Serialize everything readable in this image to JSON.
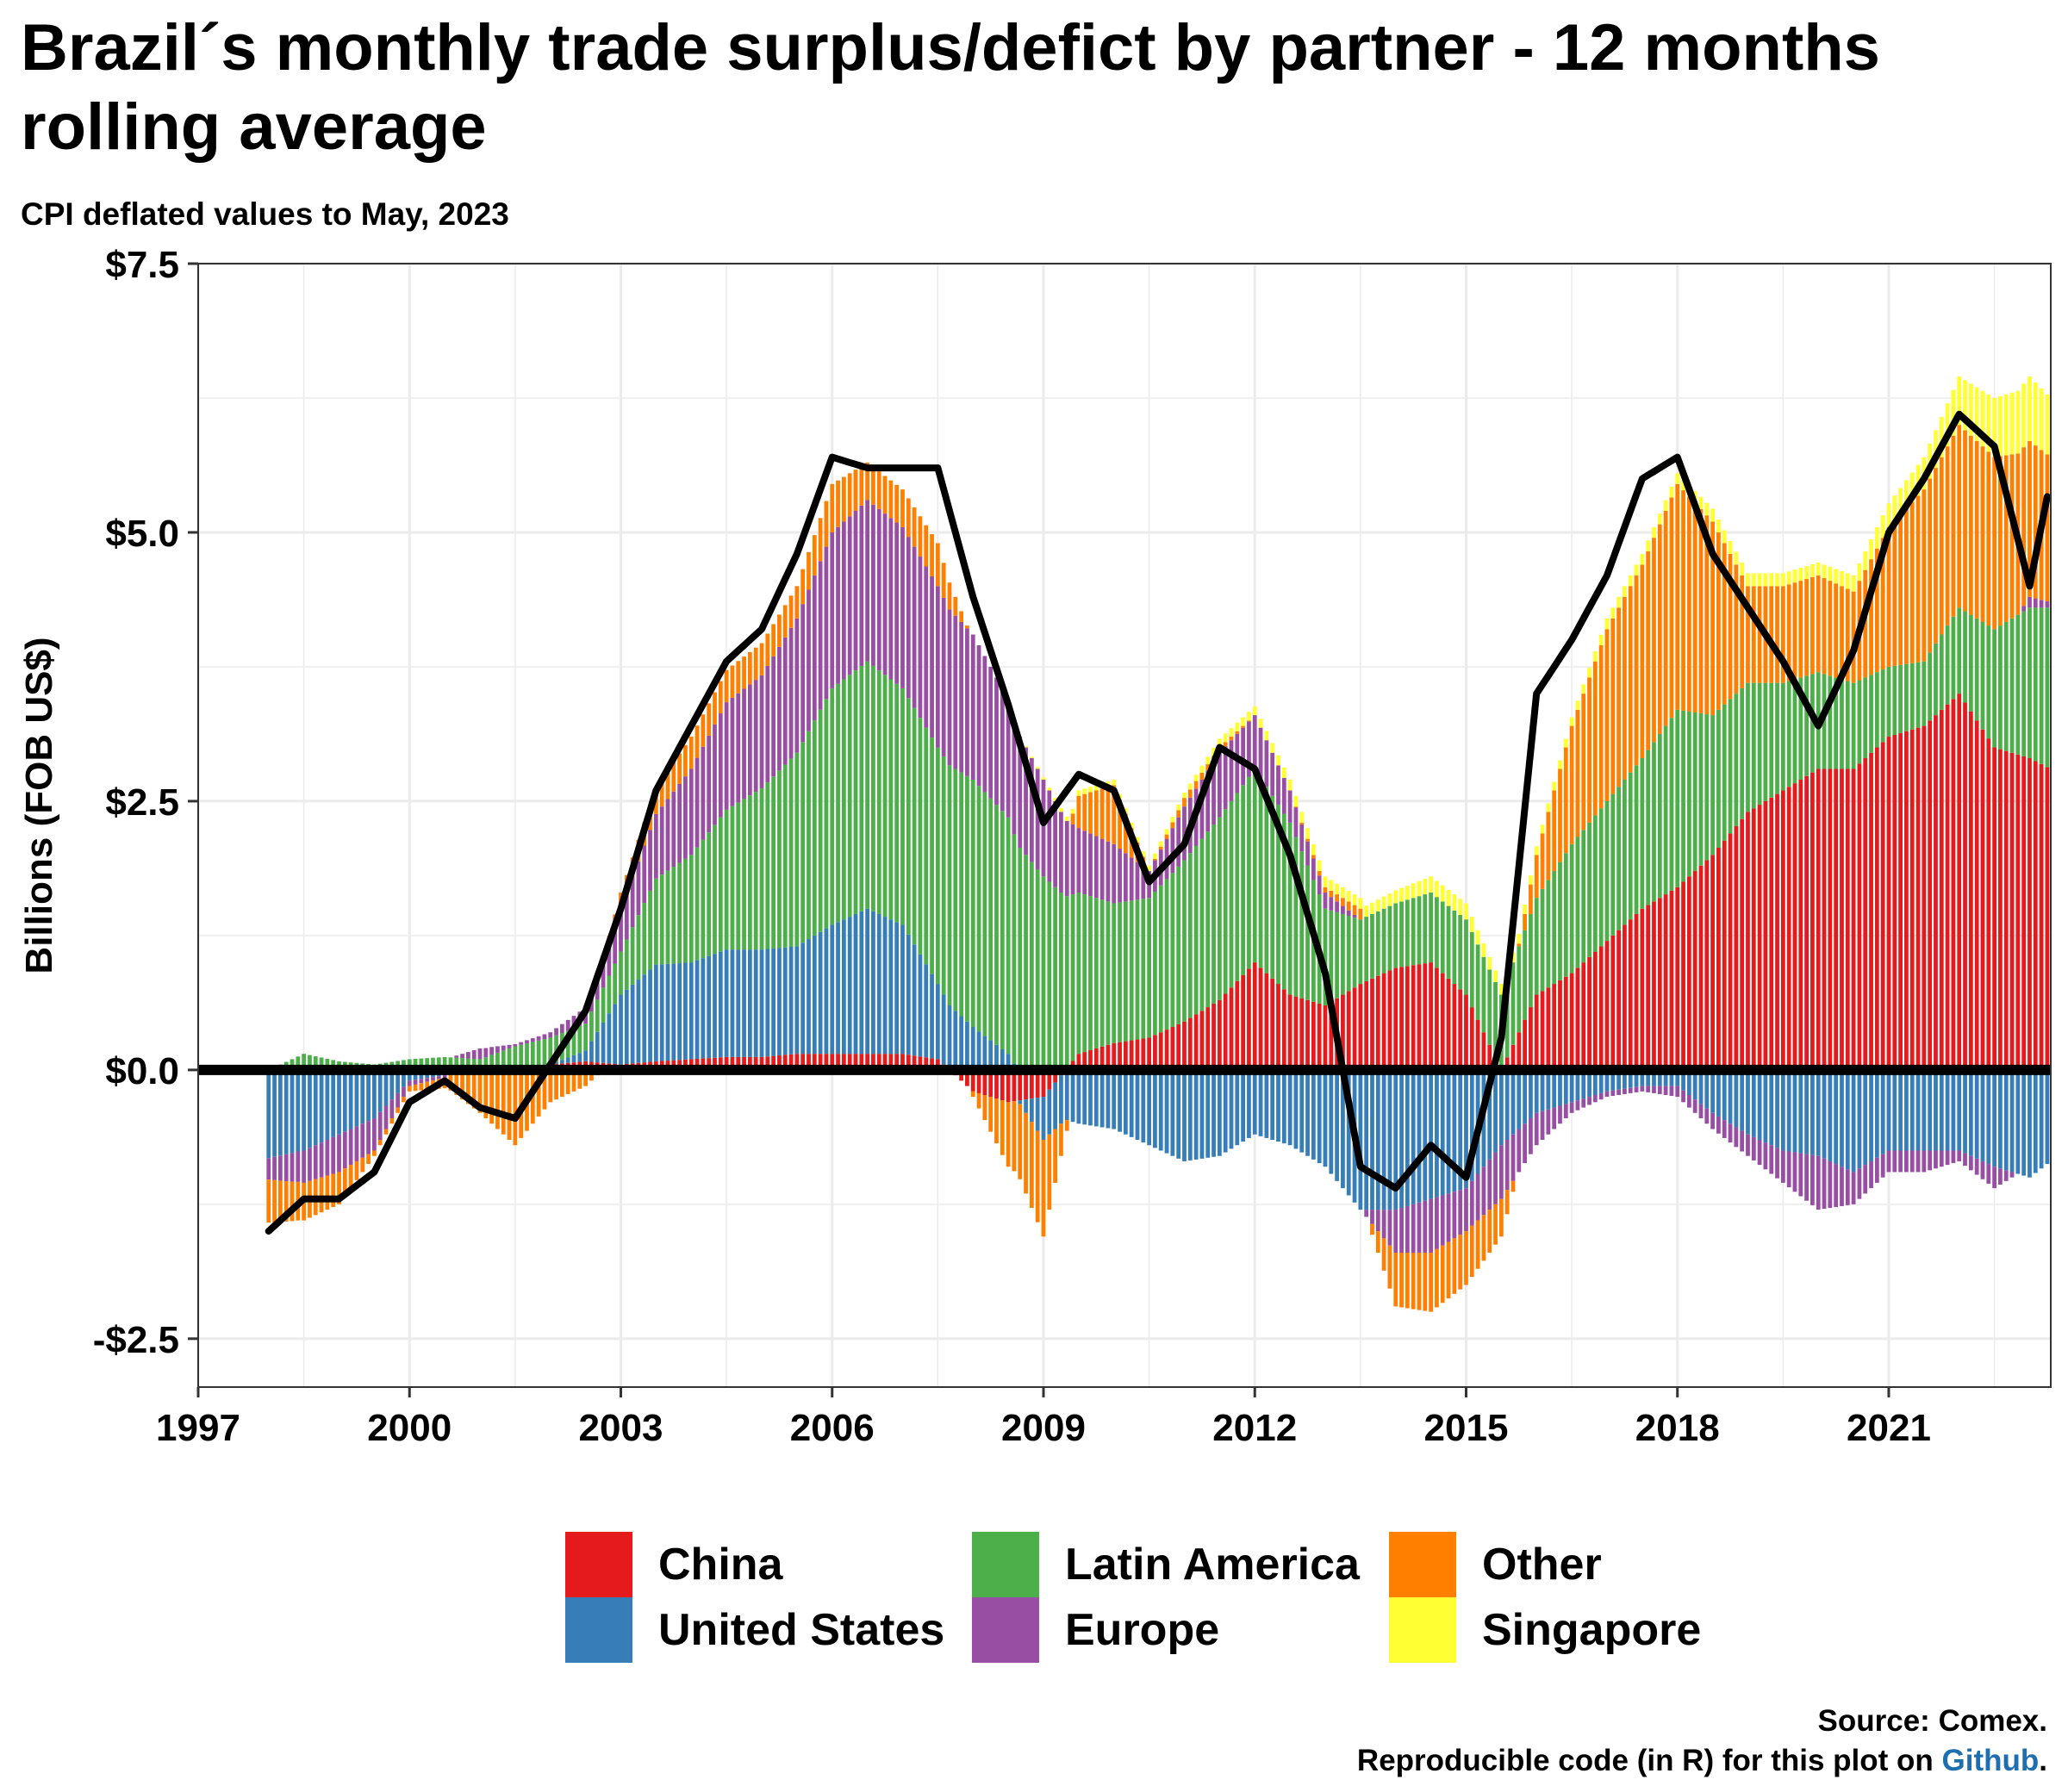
{
  "chart_data": {
    "type": "bar",
    "title": "Brazil´s monthly trade surplus/defict by partner - 12 months rolling average",
    "subtitle": "CPI deflated values to May, 2023",
    "ylabel": "Billions (FOB US$)",
    "xlabel": "",
    "x_ticks": [
      "1997",
      "2000",
      "2003",
      "2006",
      "2009",
      "2012",
      "2015",
      "2018",
      "2021"
    ],
    "y_ticks": [
      {
        "value": 7.5,
        "label": "$7.5"
      },
      {
        "value": 5.0,
        "label": "$5.0"
      },
      {
        "value": 2.5,
        "label": "$2.5"
      },
      {
        "value": 0.0,
        "label": "$0.0"
      },
      {
        "value": -2.5,
        "label": "-$2.5"
      }
    ],
    "xlim": [
      1997,
      2023.3
    ],
    "ylim": [
      -2.95,
      7.5
    ],
    "grid": true,
    "legend_position": "bottom",
    "stacked": true,
    "x": [
      1998.0,
      1998.5,
      1999.0,
      1999.5,
      2000.0,
      2000.5,
      2001.0,
      2001.5,
      2002.0,
      2002.5,
      2003.0,
      2003.5,
      2004.0,
      2004.5,
      2005.0,
      2005.5,
      2006.0,
      2006.5,
      2007.0,
      2007.5,
      2008.0,
      2008.5,
      2009.0,
      2009.5,
      2010.0,
      2010.5,
      2011.0,
      2011.5,
      2012.0,
      2012.5,
      2013.0,
      2013.5,
      2014.0,
      2014.5,
      2015.0,
      2015.5,
      2016.0,
      2016.5,
      2017.0,
      2017.5,
      2018.0,
      2018.5,
      2019.0,
      2019.5,
      2020.0,
      2020.5,
      2021.0,
      2021.5,
      2022.0,
      2022.5,
      2023.0,
      2023.3
    ],
    "series": [
      {
        "name": "China",
        "color": "#e41a1c",
        "values": [
          -0.02,
          0.0,
          0.0,
          0.0,
          0.0,
          0.0,
          0.0,
          0.02,
          0.05,
          0.08,
          0.05,
          0.08,
          0.1,
          0.12,
          0.12,
          0.15,
          0.15,
          0.15,
          0.15,
          0.1,
          -0.2,
          -0.3,
          -0.25,
          0.15,
          0.25,
          0.3,
          0.45,
          0.65,
          1.0,
          0.7,
          0.6,
          0.8,
          0.95,
          1.0,
          0.7,
          0.0,
          0.7,
          0.9,
          1.2,
          1.5,
          1.7,
          2.0,
          2.4,
          2.6,
          2.8,
          2.8,
          3.1,
          3.2,
          3.5,
          3.0,
          2.9,
          2.8
        ]
      },
      {
        "name": "United States",
        "color": "#377eb8",
        "values": [
          -0.8,
          -0.75,
          -0.6,
          -0.45,
          -0.1,
          -0.05,
          0.0,
          0.0,
          0.0,
          0.1,
          0.65,
          0.9,
          0.9,
          1.0,
          1.0,
          1.0,
          1.2,
          1.35,
          1.2,
          0.7,
          0.4,
          0.15,
          -0.4,
          -0.5,
          -0.55,
          -0.7,
          -0.85,
          -0.8,
          -0.6,
          -0.7,
          -0.9,
          -1.3,
          -1.3,
          -1.2,
          -1.1,
          -0.7,
          -0.4,
          -0.3,
          -0.2,
          -0.15,
          -0.15,
          -0.4,
          -0.6,
          -0.75,
          -0.8,
          -0.95,
          -0.75,
          -0.75,
          -0.75,
          -0.9,
          -1.0,
          -0.85
        ]
      },
      {
        "name": "Latin America",
        "color": "#4daf4a",
        "values": [
          0.0,
          0.15,
          0.08,
          0.05,
          0.1,
          0.12,
          0.1,
          0.2,
          0.25,
          0.25,
          0.4,
          0.8,
          1.0,
          1.3,
          1.5,
          1.8,
          2.2,
          2.3,
          2.2,
          2.2,
          2.3,
          2.2,
          1.8,
          1.5,
          1.3,
          1.3,
          1.5,
          1.7,
          1.8,
          1.6,
          0.9,
          0.6,
          0.6,
          0.65,
          0.7,
          0.7,
          0.9,
          1.2,
          1.3,
          1.4,
          1.65,
          1.3,
          1.2,
          1.0,
          0.9,
          0.8,
          0.65,
          0.6,
          0.8,
          1.1,
          1.4,
          1.5
        ]
      },
      {
        "name": "Europe",
        "color": "#984ea3",
        "values": [
          -0.2,
          -0.3,
          -0.35,
          -0.3,
          -0.05,
          -0.02,
          0.1,
          0.02,
          0.05,
          0.15,
          0.4,
          0.6,
          0.8,
          1.0,
          1.05,
          1.25,
          1.45,
          1.5,
          1.5,
          1.5,
          1.35,
          1.1,
          0.9,
          0.6,
          0.55,
          0.25,
          0.5,
          0.6,
          0.5,
          0.3,
          0.15,
          0.0,
          -0.4,
          -0.5,
          -0.4,
          -0.5,
          -0.3,
          -0.1,
          -0.05,
          -0.05,
          -0.1,
          -0.15,
          -0.2,
          -0.3,
          -0.5,
          -0.3,
          -0.2,
          -0.2,
          -0.1,
          -0.2,
          0.1,
          0.05
        ]
      },
      {
        "name": "Other",
        "color": "#ff7f00",
        "values": [
          -0.4,
          -0.35,
          -0.3,
          -0.05,
          -0.05,
          -0.1,
          -0.4,
          -0.7,
          -0.3,
          -0.15,
          0.15,
          0.25,
          0.3,
          0.3,
          0.3,
          0.3,
          0.45,
          0.35,
          0.35,
          0.4,
          -0.05,
          -0.6,
          -0.9,
          0.3,
          0.55,
          0.0,
          0.08,
          0.05,
          0.0,
          0.0,
          0.05,
          0.1,
          -0.5,
          -0.55,
          -0.5,
          -0.35,
          0.4,
          1.1,
          1.6,
          1.8,
          2.1,
          1.8,
          0.9,
          0.9,
          0.9,
          0.85,
          1.3,
          1.6,
          1.7,
          1.6,
          1.45,
          1.35
        ]
      },
      {
        "name": "Singapore",
        "color": "#ffff33",
        "values": [
          0.0,
          0.0,
          0.0,
          0.0,
          0.0,
          0.0,
          0.0,
          0.0,
          0.0,
          0.0,
          0.0,
          0.0,
          0.0,
          0.0,
          0.0,
          0.0,
          0.0,
          0.0,
          0.0,
          0.0,
          0.0,
          0.0,
          0.02,
          0.05,
          0.05,
          0.05,
          0.05,
          0.08,
          0.08,
          0.1,
          0.1,
          0.1,
          0.12,
          0.15,
          0.15,
          0.1,
          0.08,
          0.08,
          0.1,
          0.1,
          0.1,
          0.12,
          0.12,
          0.12,
          0.12,
          0.15,
          0.22,
          0.3,
          0.45,
          0.55,
          0.6,
          0.55
        ]
      }
    ],
    "total_line": {
      "name": "Total",
      "color": "#000000",
      "values": [
        -1.5,
        -1.2,
        -1.2,
        -0.95,
        -0.3,
        -0.1,
        -0.35,
        -0.45,
        0.05,
        0.55,
        1.5,
        2.6,
        3.2,
        3.8,
        4.1,
        4.8,
        5.7,
        5.6,
        5.6,
        5.6,
        4.4,
        3.4,
        2.3,
        2.75,
        2.6,
        1.75,
        2.1,
        3.0,
        2.8,
        2.0,
        0.9,
        -0.9,
        -1.1,
        -0.7,
        -1.0,
        0.3,
        3.5,
        4.0,
        4.6,
        5.5,
        5.7,
        4.8,
        4.3,
        3.8,
        3.2,
        3.9,
        5.0,
        5.5,
        6.1,
        5.8,
        4.5,
        5.5
      ]
    },
    "legend": [
      {
        "label": "China",
        "color": "#e41a1c"
      },
      {
        "label": "Latin America",
        "color": "#4daf4a"
      },
      {
        "label": "Other",
        "color": "#ff7f00"
      },
      {
        "label": "United States",
        "color": "#377eb8"
      },
      {
        "label": "Europe",
        "color": "#984ea3"
      },
      {
        "label": "Singapore",
        "color": "#ffff33"
      }
    ],
    "caption_line1": "Source: Comex.",
    "caption_line2_prefix": "Reproducible code (in R) for this plot on ",
    "caption_link": "Github",
    "caption_line2_suffix": "."
  }
}
